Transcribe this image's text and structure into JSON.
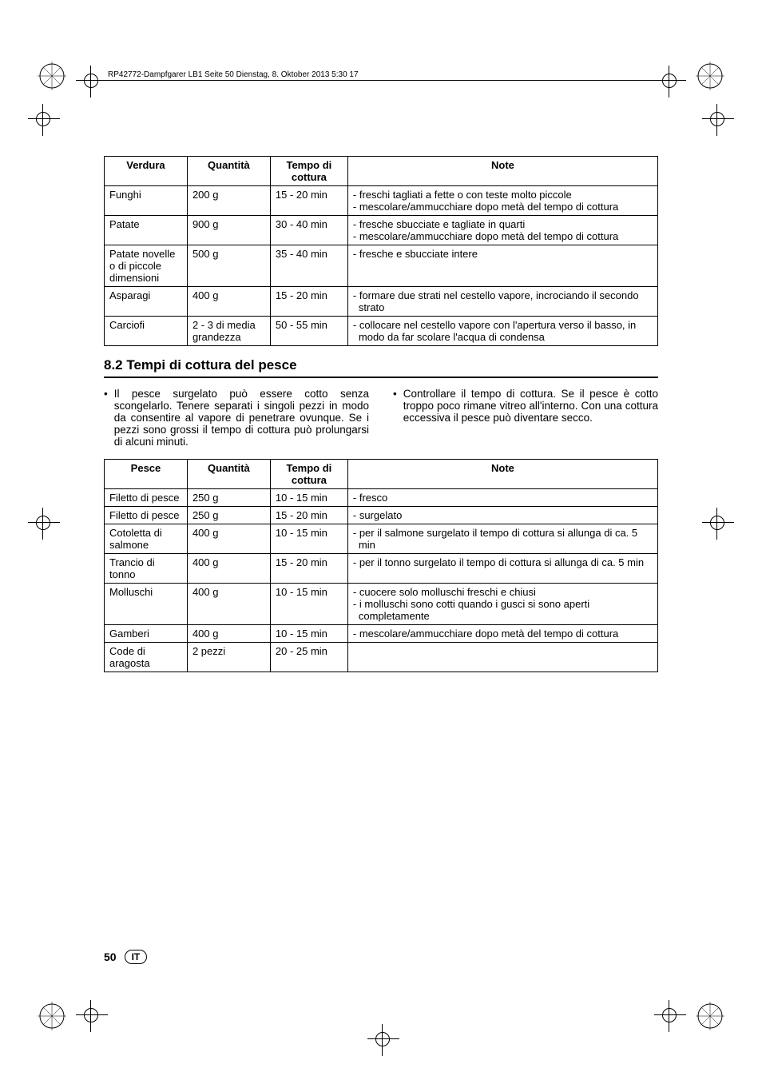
{
  "header_text": "RP42772-Dampfgarer LB1  Seite 50  Dienstag, 8. Oktober 2013  5:30 17",
  "table1": {
    "headers": {
      "c1": "Verdura",
      "c2": "Quantità",
      "c3": "Tempo di cottura",
      "c4": "Note"
    },
    "rows": [
      {
        "c1": "Funghi",
        "c2": "200 g",
        "c3": "15 - 20 min",
        "notes": [
          "freschi tagliati a fette o con teste molto piccole",
          "mescolare/ammucchiare dopo metà del tempo di cottura"
        ]
      },
      {
        "c1": "Patate",
        "c2": "900 g",
        "c3": "30 - 40 min",
        "notes": [
          "fresche sbucciate e tagliate in quarti",
          "mescolare/ammucchiare dopo metà del tempo di cottura"
        ]
      },
      {
        "c1": "Patate novelle o di piccole dimensioni",
        "c2": "500 g",
        "c3": "35 - 40 min",
        "notes": [
          "fresche e sbucciate intere"
        ]
      },
      {
        "c1": "Asparagi",
        "c2": "400 g",
        "c3": "15 - 20 min",
        "notes": [
          "formare due strati nel cestello vapore, incrociando il secondo strato"
        ]
      },
      {
        "c1": "Carciofi",
        "c2": "2 - 3 di media grandezza",
        "c3": "50 - 55 min",
        "notes": [
          "collocare nel cestello vapore con l'apertura verso il basso, in modo da far scolare l'acqua di condensa"
        ]
      }
    ]
  },
  "section_heading": "8.2 Tempi di cottura del pesce",
  "para_left": "Il pesce surgelato può essere cotto senza scongelarlo. Tenere separati i singoli pezzi in modo da consentire al vapore di penetrare ovunque. Se i pezzi sono grossi il tempo di cottura può prolungarsi di alcuni minuti.",
  "para_right": "Controllare il tempo di cottura. Se il pesce è cotto troppo poco rimane vitreo all'interno. Con una cottura eccessiva il pesce può diventare secco.",
  "table2": {
    "headers": {
      "c1": "Pesce",
      "c2": "Quantità",
      "c3": "Tempo di cottura",
      "c4": "Note"
    },
    "rows": [
      {
        "c1": "Filetto di pesce",
        "c2": "250 g",
        "c3": "10 - 15 min",
        "notes": [
          "fresco"
        ]
      },
      {
        "c1": "Filetto di pesce",
        "c2": "250 g",
        "c3": "15 - 20 min",
        "notes": [
          "surgelato"
        ]
      },
      {
        "c1": "Cotoletta di salmone",
        "c2": "400 g",
        "c3": "10 - 15 min",
        "notes": [
          "per il salmone surgelato il tempo di cottura si allunga di ca. 5 min"
        ]
      },
      {
        "c1": "Trancio di tonno",
        "c2": "400 g",
        "c3": "15 - 20 min",
        "notes": [
          "per il tonno surgelato il tempo di cottura si allunga di ca. 5 min"
        ]
      },
      {
        "c1": "Molluschi",
        "c2": "400 g",
        "c3": "10 - 15 min",
        "notes": [
          "cuocere solo molluschi freschi e chiusi",
          "i molluschi sono cotti quando i gusci si sono aperti completamente"
        ]
      },
      {
        "c1": "Gamberi",
        "c2": "400 g",
        "c3": "10 - 15 min",
        "notes": [
          "mescolare/ammucchiare dopo metà del tempo di cottura"
        ]
      },
      {
        "c1": "Code di aragosta",
        "c2": "2 pezzi",
        "c3": "20 - 25 min",
        "notes": []
      }
    ]
  },
  "page_number": "50",
  "lang": "IT"
}
